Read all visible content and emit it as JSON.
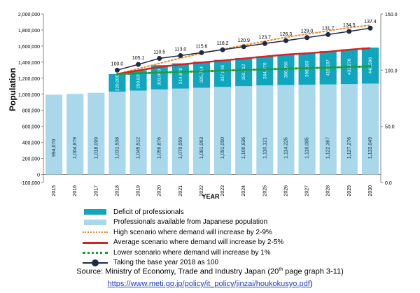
{
  "chart_data": {
    "type": "bar",
    "x": [
      "2015",
      "2016",
      "2017",
      "2018",
      "2019",
      "2020",
      "2021",
      "2022",
      "2023",
      "2024",
      "2025",
      "2026",
      "2027",
      "2028",
      "2029",
      "2030"
    ],
    "xlabel": "YEAR",
    "ylabel": "Population",
    "ylim": [
      -100000,
      2000000
    ],
    "yticks": [
      "2,000,000",
      "1,800,000",
      "1,600,000",
      "1,400,000",
      "1,200,000",
      "1,000,000",
      "800,000",
      "600,000",
      "400,000",
      "200,000",
      "0",
      "-100,000"
    ],
    "y2lim": [
      0.0,
      150.0
    ],
    "y2ticks": [
      "150.0",
      "100.0",
      "50.0",
      "0.0"
    ],
    "grid": false,
    "legend_position": "bottom",
    "series": [
      {
        "name": "Professionals available from Japanese population",
        "kind": "bar",
        "color": "#a8d8ea",
        "values": [
          994070,
          1004879,
          1018099,
          1031538,
          1045512,
          1059876,
          1070559,
          1081063,
          1091050,
          1100836,
          1110121,
          1114225,
          1118085,
          1122367,
          1127276,
          1133049
        ],
        "labels": [
          "994,070",
          "1,004,879",
          "1,018,099",
          "1,031,538",
          "1,045,512",
          "1,059,876",
          "1,070,559",
          "1,081,063",
          "1,091,050",
          "1,100,836",
          "1,110,121",
          "1,114,225",
          "1,118,085",
          "1,122,367",
          "1,127,276",
          "1,133,049"
        ]
      },
      {
        "name": "Deficit of professionals",
        "kind": "bar-stacked",
        "color": "#10a6be",
        "values": [
          null,
          null,
          null,
          220000,
          250835,
          303000,
          314839,
          325714,
          337848,
          350112,
          364070,
          380956,
          398183,
          415187,
          432270,
          448596
        ],
        "labels": [
          "",
          "",
          "",
          "220,000",
          "250,835",
          "303,000",
          "314,839",
          "325,714",
          "337,848",
          "350,112",
          "364,070",
          "380,956",
          "398,183",
          "415,187",
          "432,270",
          "448,596"
        ]
      },
      {
        "name": "High scenario where demand will increase by 2-9%",
        "kind": "line",
        "style": "dotted",
        "color": "#f08a2a",
        "values": [
          null,
          null,
          null,
          1251538,
          1320000,
          1385000,
          1450000,
          1510000,
          1560000,
          1610000,
          1660000,
          1710000,
          1750000,
          1790000,
          1830000,
          1860000
        ]
      },
      {
        "name": "Average scenario where demand will increase by 2-5%",
        "kind": "line",
        "style": "solid",
        "color": "#d42323",
        "values": [
          null,
          null,
          null,
          1251538,
          1296347,
          1340000,
          1370000,
          1395000,
          1420000,
          1445000,
          1470000,
          1495000,
          1510000,
          1530000,
          1555000,
          1575000
        ]
      },
      {
        "name": "Lower scenario where demand will increase by 1%",
        "kind": "line",
        "style": "dotted",
        "color": "#1e9c3a",
        "values": [
          null,
          null,
          null,
          1251538,
          1260000,
          1270000,
          1278000,
          1286000,
          1294000,
          1302000,
          1310000,
          1318000,
          1325000,
          1332000,
          1340000,
          1347000
        ]
      },
      {
        "name": "Taking the base year 2018 as 100",
        "kind": "line-markers",
        "axis": "right",
        "color": "#1c2a4a",
        "values": [
          null,
          null,
          null,
          100.0,
          105.1,
          110.5,
          113.0,
          115.6,
          118.2,
          120.9,
          123.7,
          126.3,
          129.0,
          131.7,
          134.5,
          137.4
        ],
        "labels": [
          "",
          "",
          "",
          "100.0",
          "105.1",
          "110.5",
          "113.0",
          "115.6",
          "118.2",
          "120.9",
          "123.7",
          "126.3",
          "129.0",
          "131.7",
          "134.5",
          "137.4"
        ]
      }
    ]
  },
  "source": {
    "line1_pre": "Source: Ministry of Economy, Trade and Industry Japan (20",
    "line1_sup": "th",
    "line1_post": " page graph 3-11)",
    "url": "https://www.meti.go.jp/policy/it_policy/jinzai/houkokusyo.pdf",
    "close": ")"
  }
}
